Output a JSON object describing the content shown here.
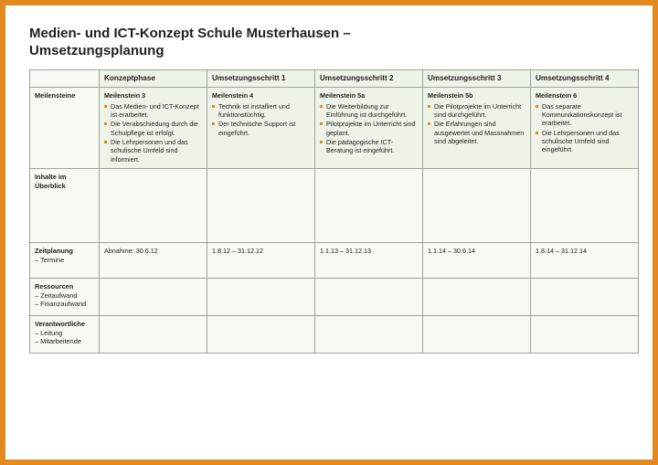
{
  "colors": {
    "border": "#e28a1f",
    "header_bg": "#eef3e7",
    "cell_bg": "#f7f9f3",
    "grid": "#9aa59a",
    "text": "#222222",
    "bullet": "#e28a1f"
  },
  "title": {
    "line1": "Medien- und ICT-Konzept Schule Musterhausen –",
    "line2": "Umsetzungsplanung"
  },
  "columns": [
    "Konzeptphase",
    "Umsetzungsschritt 1",
    "Umsetzungsschritt 2",
    "Umsetzungsschritt 3",
    "Umsetzungsschritt 4"
  ],
  "rows": {
    "meilensteine": {
      "label": "Meilensteine",
      "cells": [
        {
          "title": "Meilenstein 3",
          "items": [
            "Das Medien- und ICT-Konzept ist erarbeitet.",
            "Die Verabschiedung durch die Schulpflege ist erfolgt.",
            "Die Lehrpersonen und das schulische Umfeld sind informiert."
          ]
        },
        {
          "title": "Meilenstein 4",
          "items": [
            "Technik ist installiert und funktionstüchtig.",
            "Der technische Support ist eingeführt."
          ]
        },
        {
          "title": "Meilenstein 5a",
          "items": [
            "Die Weiterbildung zur Einführung ist durchgeführt.",
            "Pilotprojekte im Unterricht sind geplant.",
            "Die pädagogische ICT-Beratung ist eingeführt."
          ]
        },
        {
          "title": "Meilenstein 5b",
          "items": [
            "Die Pilotprojekte im Unterricht sind durchgeführt.",
            "Die Erfahrungen sind ausgewertet und Massnahmen sind abgeleitet."
          ]
        },
        {
          "title": "Meilenstein 6",
          "items": [
            "Das separate Kommunikationskonzept ist erarbeitet.",
            "Die Lehrpersonen und das schulische Umfeld sind eingeführt."
          ]
        }
      ]
    },
    "inhalte": {
      "label": "Inhalte im Überblick",
      "cells": [
        "",
        "",
        "",
        "",
        ""
      ]
    },
    "zeitplanung": {
      "label": "Zeitplanung",
      "sub": "– Termine",
      "cells": [
        "Abnahme: 30.6.12",
        "1.8.12 – 31.12.12",
        "1.1.13 – 31.12.13",
        "1.1.14 – 30.6.14",
        "1.8.14 – 31.12.14"
      ]
    },
    "ressourcen": {
      "label": "Ressourcen",
      "sub1": "– Zeitaufwand",
      "sub2": "– Finanzaufwand",
      "cells": [
        "",
        "",
        "",
        "",
        ""
      ]
    },
    "verantwortliche": {
      "label": "Verantwortliche",
      "sub1": "– Leitung",
      "sub2": "– Mitarbeitende",
      "cells": [
        "",
        "",
        "",
        "",
        ""
      ]
    }
  },
  "footer": ""
}
